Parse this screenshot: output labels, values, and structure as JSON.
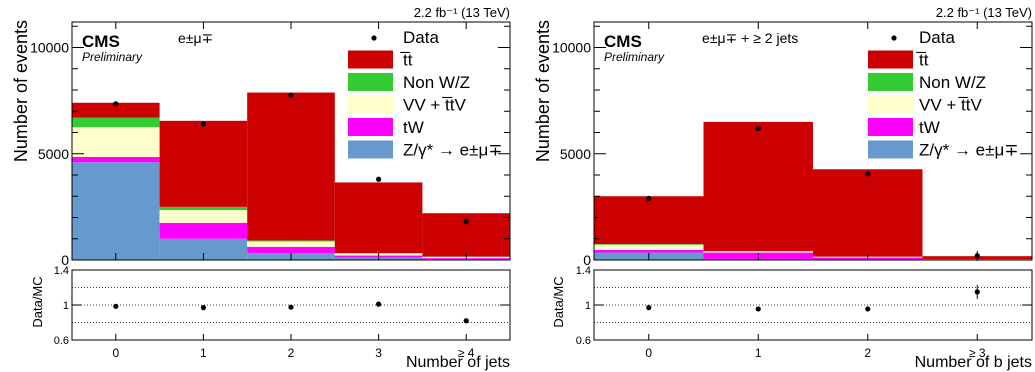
{
  "chart_data": [
    {
      "type": "bar",
      "stacked": true,
      "lumi_label": "2.2 fb⁻¹ (13 TeV)",
      "experiment_label": "CMS",
      "status_label": "Preliminary",
      "channel_label": "e±μ∓",
      "xlabel": "Number of jets",
      "ylabel": "Number of events",
      "ratio_ylabel": "Data/MC",
      "categories": [
        "0",
        "1",
        "2",
        "3",
        "≥ 4"
      ],
      "ylim": [
        0,
        11200
      ],
      "yticks": [
        "0",
        "5000",
        "10000"
      ],
      "ratio_ylim": [
        0.6,
        1.4
      ],
      "ratio_yticks": [
        "0.6",
        "1",
        "1.4"
      ],
      "series": [
        {
          "name": "Z/γ* → e±μ∓",
          "color": "#6699cc",
          "values": [
            4600,
            1000,
            320,
            110,
            40
          ]
        },
        {
          "name": "tW",
          "color": "#ff00ff",
          "values": [
            250,
            750,
            300,
            100,
            50
          ]
        },
        {
          "name": "VV + t̅tV",
          "color": "#ffffcc",
          "values": [
            1400,
            600,
            250,
            100,
            60
          ]
        },
        {
          "name": "Non W/Z",
          "color": "#33cc33",
          "values": [
            450,
            150,
            50,
            20,
            10
          ]
        },
        {
          "name": "t̅t",
          "color": "#cc0000",
          "values": [
            700,
            4050,
            6960,
            3320,
            2040
          ]
        }
      ],
      "data": {
        "name": "Data",
        "values": [
          7350,
          6400,
          7750,
          3800,
          1800
        ]
      },
      "ratio": {
        "values": [
          0.985,
          0.97,
          0.975,
          1.01,
          0.82
        ]
      },
      "legend_position": "top-right"
    },
    {
      "type": "bar",
      "stacked": true,
      "lumi_label": "2.2 fb⁻¹ (13 TeV)",
      "experiment_label": "CMS",
      "status_label": "Preliminary",
      "channel_label": "e±μ∓ + ≥ 2 jets",
      "xlabel": "Number of b jets",
      "ylabel": "Number of events",
      "ratio_ylabel": "Data/MC",
      "categories": [
        "0",
        "1",
        "2",
        "≥ 3"
      ],
      "ylim": [
        0,
        11200
      ],
      "yticks": [
        "0",
        "5000",
        "10000"
      ],
      "ratio_ylim": [
        0.6,
        1.4
      ],
      "ratio_yticks": [
        "0.6",
        "1",
        "1.4"
      ],
      "series": [
        {
          "name": "Z/γ* → e±μ∓",
          "color": "#6699cc",
          "values": [
            350,
            50,
            15,
            5
          ]
        },
        {
          "name": "tW",
          "color": "#ff00ff",
          "values": [
            120,
            300,
            100,
            20
          ]
        },
        {
          "name": "VV + t̅tV",
          "color": "#ffffcc",
          "values": [
            250,
            60,
            40,
            10
          ]
        },
        {
          "name": "Non W/Z",
          "color": "#33cc33",
          "values": [
            30,
            15,
            5,
            2
          ]
        },
        {
          "name": "t̅t",
          "color": "#cc0000",
          "values": [
            2250,
            6075,
            4110,
            143
          ]
        }
      ],
      "data": {
        "name": "Data",
        "values": [
          2900,
          6200,
          4050,
          200
        ]
      },
      "ratio": {
        "values": [
          0.97,
          0.955,
          0.955,
          1.15
        ]
      },
      "legend_position": "top-right"
    }
  ]
}
